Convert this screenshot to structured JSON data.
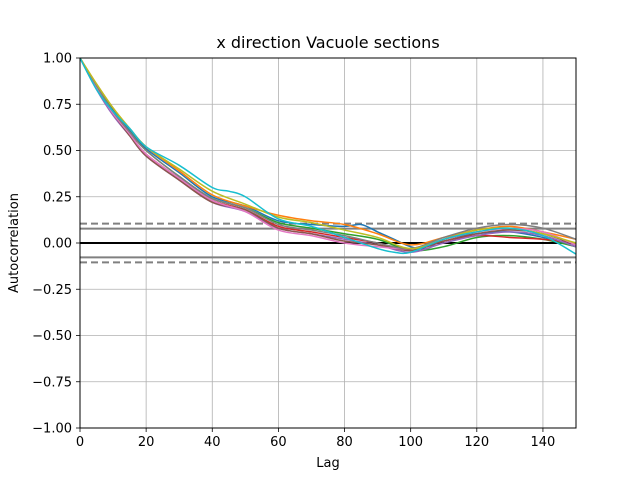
{
  "chart_data": {
    "type": "line",
    "title": "x direction Vacuole sections",
    "xlabel": "Lag",
    "ylabel": "Autocorrelation",
    "xlim": [
      0,
      150
    ],
    "ylim": [
      -1.0,
      1.0
    ],
    "grid": true,
    "x_ticks": [
      0,
      20,
      40,
      60,
      80,
      100,
      120,
      140
    ],
    "x_tick_labels": [
      "0",
      "20",
      "40",
      "60",
      "80",
      "100",
      "120",
      "140"
    ],
    "y_ticks": [
      1.0,
      0.75,
      0.5,
      0.25,
      0.0,
      -0.25,
      -0.5,
      -0.75,
      -1.0
    ],
    "y_tick_labels": [
      "1.00",
      "0.75",
      "0.50",
      "0.25",
      "0.00",
      "−0.25",
      "−0.50",
      "−0.75",
      "−1.00"
    ],
    "reference_lines": {
      "zero": 0.0,
      "solid_band": [
        0.078,
        -0.078
      ],
      "dashed_band": [
        0.105,
        -0.105
      ],
      "zero_color": "#000000",
      "band_color": "#808080"
    },
    "series": [
      {
        "color": "#1f77b4",
        "x": [
          0,
          5,
          10,
          15,
          20,
          30,
          40,
          50,
          60,
          70,
          80,
          85,
          90,
          95,
          100,
          105,
          110,
          120,
          130,
          140,
          150
        ],
        "y": [
          1.0,
          0.85,
          0.72,
          0.61,
          0.51,
          0.38,
          0.25,
          0.2,
          0.12,
          0.1,
          0.09,
          0.1,
          0.06,
          0.02,
          -0.02,
          -0.03,
          0.02,
          0.05,
          0.06,
          0.03,
          -0.02
        ]
      },
      {
        "color": "#ff7f0e",
        "x": [
          0,
          5,
          10,
          15,
          20,
          30,
          40,
          50,
          60,
          70,
          80,
          90,
          100,
          110,
          120,
          130,
          140,
          150
        ],
        "y": [
          1.0,
          0.86,
          0.73,
          0.62,
          0.52,
          0.39,
          0.26,
          0.2,
          0.15,
          0.12,
          0.1,
          0.05,
          -0.01,
          0.03,
          0.07,
          0.09,
          0.06,
          0.02
        ]
      },
      {
        "color": "#2ca02c",
        "x": [
          0,
          5,
          10,
          15,
          20,
          30,
          40,
          50,
          60,
          70,
          80,
          90,
          100,
          110,
          120,
          130,
          140,
          150
        ],
        "y": [
          1.0,
          0.85,
          0.71,
          0.6,
          0.5,
          0.36,
          0.24,
          0.19,
          0.11,
          0.08,
          0.05,
          0.02,
          -0.04,
          -0.02,
          0.03,
          0.04,
          0.02,
          -0.02
        ]
      },
      {
        "color": "#d62728",
        "x": [
          0,
          5,
          10,
          15,
          20,
          30,
          40,
          50,
          60,
          70,
          80,
          90,
          100,
          110,
          120,
          130,
          140,
          150
        ],
        "y": [
          1.0,
          0.84,
          0.7,
          0.59,
          0.48,
          0.35,
          0.23,
          0.18,
          0.09,
          0.06,
          0.03,
          0.0,
          -0.04,
          0.01,
          0.04,
          0.03,
          0.02,
          0.0
        ]
      },
      {
        "color": "#9467bd",
        "x": [
          0,
          5,
          10,
          15,
          20,
          30,
          40,
          50,
          60,
          70,
          80,
          90,
          100,
          110,
          120,
          130,
          140,
          150
        ],
        "y": [
          1.0,
          0.83,
          0.69,
          0.58,
          0.47,
          0.34,
          0.22,
          0.17,
          0.08,
          0.05,
          0.02,
          -0.01,
          -0.05,
          0.0,
          0.04,
          0.06,
          0.04,
          -0.02
        ]
      },
      {
        "color": "#8c564b",
        "x": [
          0,
          5,
          10,
          15,
          20,
          30,
          40,
          50,
          60,
          70,
          80,
          90,
          100,
          110,
          120,
          130,
          140,
          150
        ],
        "y": [
          1.0,
          0.84,
          0.7,
          0.58,
          0.47,
          0.34,
          0.22,
          0.18,
          0.08,
          0.05,
          0.01,
          -0.01,
          -0.04,
          0.01,
          0.05,
          0.07,
          0.05,
          -0.01
        ]
      },
      {
        "color": "#e377c2",
        "x": [
          0,
          5,
          10,
          15,
          20,
          30,
          40,
          50,
          60,
          70,
          80,
          90,
          100,
          110,
          120,
          130,
          140,
          150
        ],
        "y": [
          1.0,
          0.84,
          0.7,
          0.59,
          0.48,
          0.35,
          0.23,
          0.17,
          0.07,
          0.04,
          0.0,
          -0.02,
          -0.03,
          0.02,
          0.06,
          0.08,
          0.06,
          -0.01
        ]
      },
      {
        "color": "#7f7f7f",
        "x": [
          0,
          5,
          10,
          15,
          20,
          30,
          40,
          50,
          60,
          70,
          80,
          90,
          100,
          110,
          120,
          130,
          140,
          150
        ],
        "y": [
          1.0,
          0.85,
          0.71,
          0.6,
          0.5,
          0.36,
          0.24,
          0.19,
          0.1,
          0.07,
          0.04,
          0.0,
          -0.03,
          0.03,
          0.08,
          0.1,
          0.08,
          0.02
        ]
      },
      {
        "color": "#bcbd22",
        "x": [
          0,
          5,
          10,
          15,
          20,
          30,
          40,
          50,
          60,
          70,
          80,
          90,
          100,
          110,
          120,
          130,
          140,
          150
        ],
        "y": [
          1.0,
          0.86,
          0.73,
          0.62,
          0.52,
          0.4,
          0.28,
          0.21,
          0.14,
          0.11,
          0.07,
          0.03,
          -0.03,
          0.02,
          0.07,
          0.08,
          0.05,
          0.0
        ]
      },
      {
        "color": "#17becf",
        "x": [
          0,
          5,
          10,
          15,
          20,
          30,
          40,
          45,
          50,
          60,
          70,
          80,
          90,
          95,
          100,
          110,
          120,
          130,
          140,
          150
        ],
        "y": [
          1.0,
          0.83,
          0.71,
          0.62,
          0.52,
          0.42,
          0.3,
          0.28,
          0.25,
          0.13,
          0.09,
          0.03,
          -0.03,
          -0.05,
          -0.05,
          0.02,
          0.06,
          0.08,
          0.04,
          -0.06
        ]
      }
    ]
  }
}
